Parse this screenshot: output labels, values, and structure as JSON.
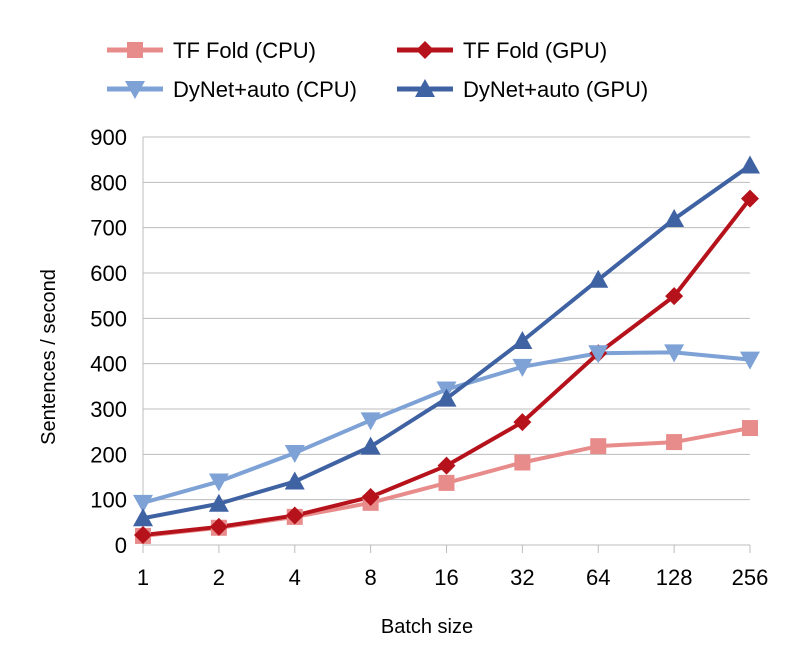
{
  "chart_data": {
    "type": "line",
    "title": "",
    "xlabel": "Batch size",
    "ylabel": "Sentences / second",
    "categories": [
      "1",
      "2",
      "4",
      "8",
      "16",
      "32",
      "64",
      "128",
      "256"
    ],
    "ylim": [
      0,
      900
    ],
    "yticks": [
      0,
      100,
      200,
      300,
      400,
      500,
      600,
      700,
      800,
      900
    ],
    "grid": "horizontal",
    "legend_position": "top",
    "series": [
      {
        "name": "TF Fold (CPU)",
        "marker": "square",
        "color": "#e88b8b",
        "values": [
          20,
          38,
          62,
          93,
          137,
          182,
          218,
          227,
          258
        ]
      },
      {
        "name": "TF Fold (GPU)",
        "marker": "diamond",
        "color": "#b5121b",
        "values": [
          22,
          40,
          65,
          106,
          175,
          271,
          423,
          549,
          764
        ]
      },
      {
        "name": "DyNet+auto (CPU)",
        "marker": "triangle-down",
        "color": "#7ea2d6",
        "values": [
          93,
          140,
          203,
          275,
          343,
          393,
          423,
          425,
          409
        ]
      },
      {
        "name": "DyNet+auto (GPU)",
        "marker": "triangle-up",
        "color": "#3f62a3",
        "values": [
          59,
          91,
          140,
          217,
          323,
          450,
          585,
          719,
          837
        ]
      }
    ]
  }
}
